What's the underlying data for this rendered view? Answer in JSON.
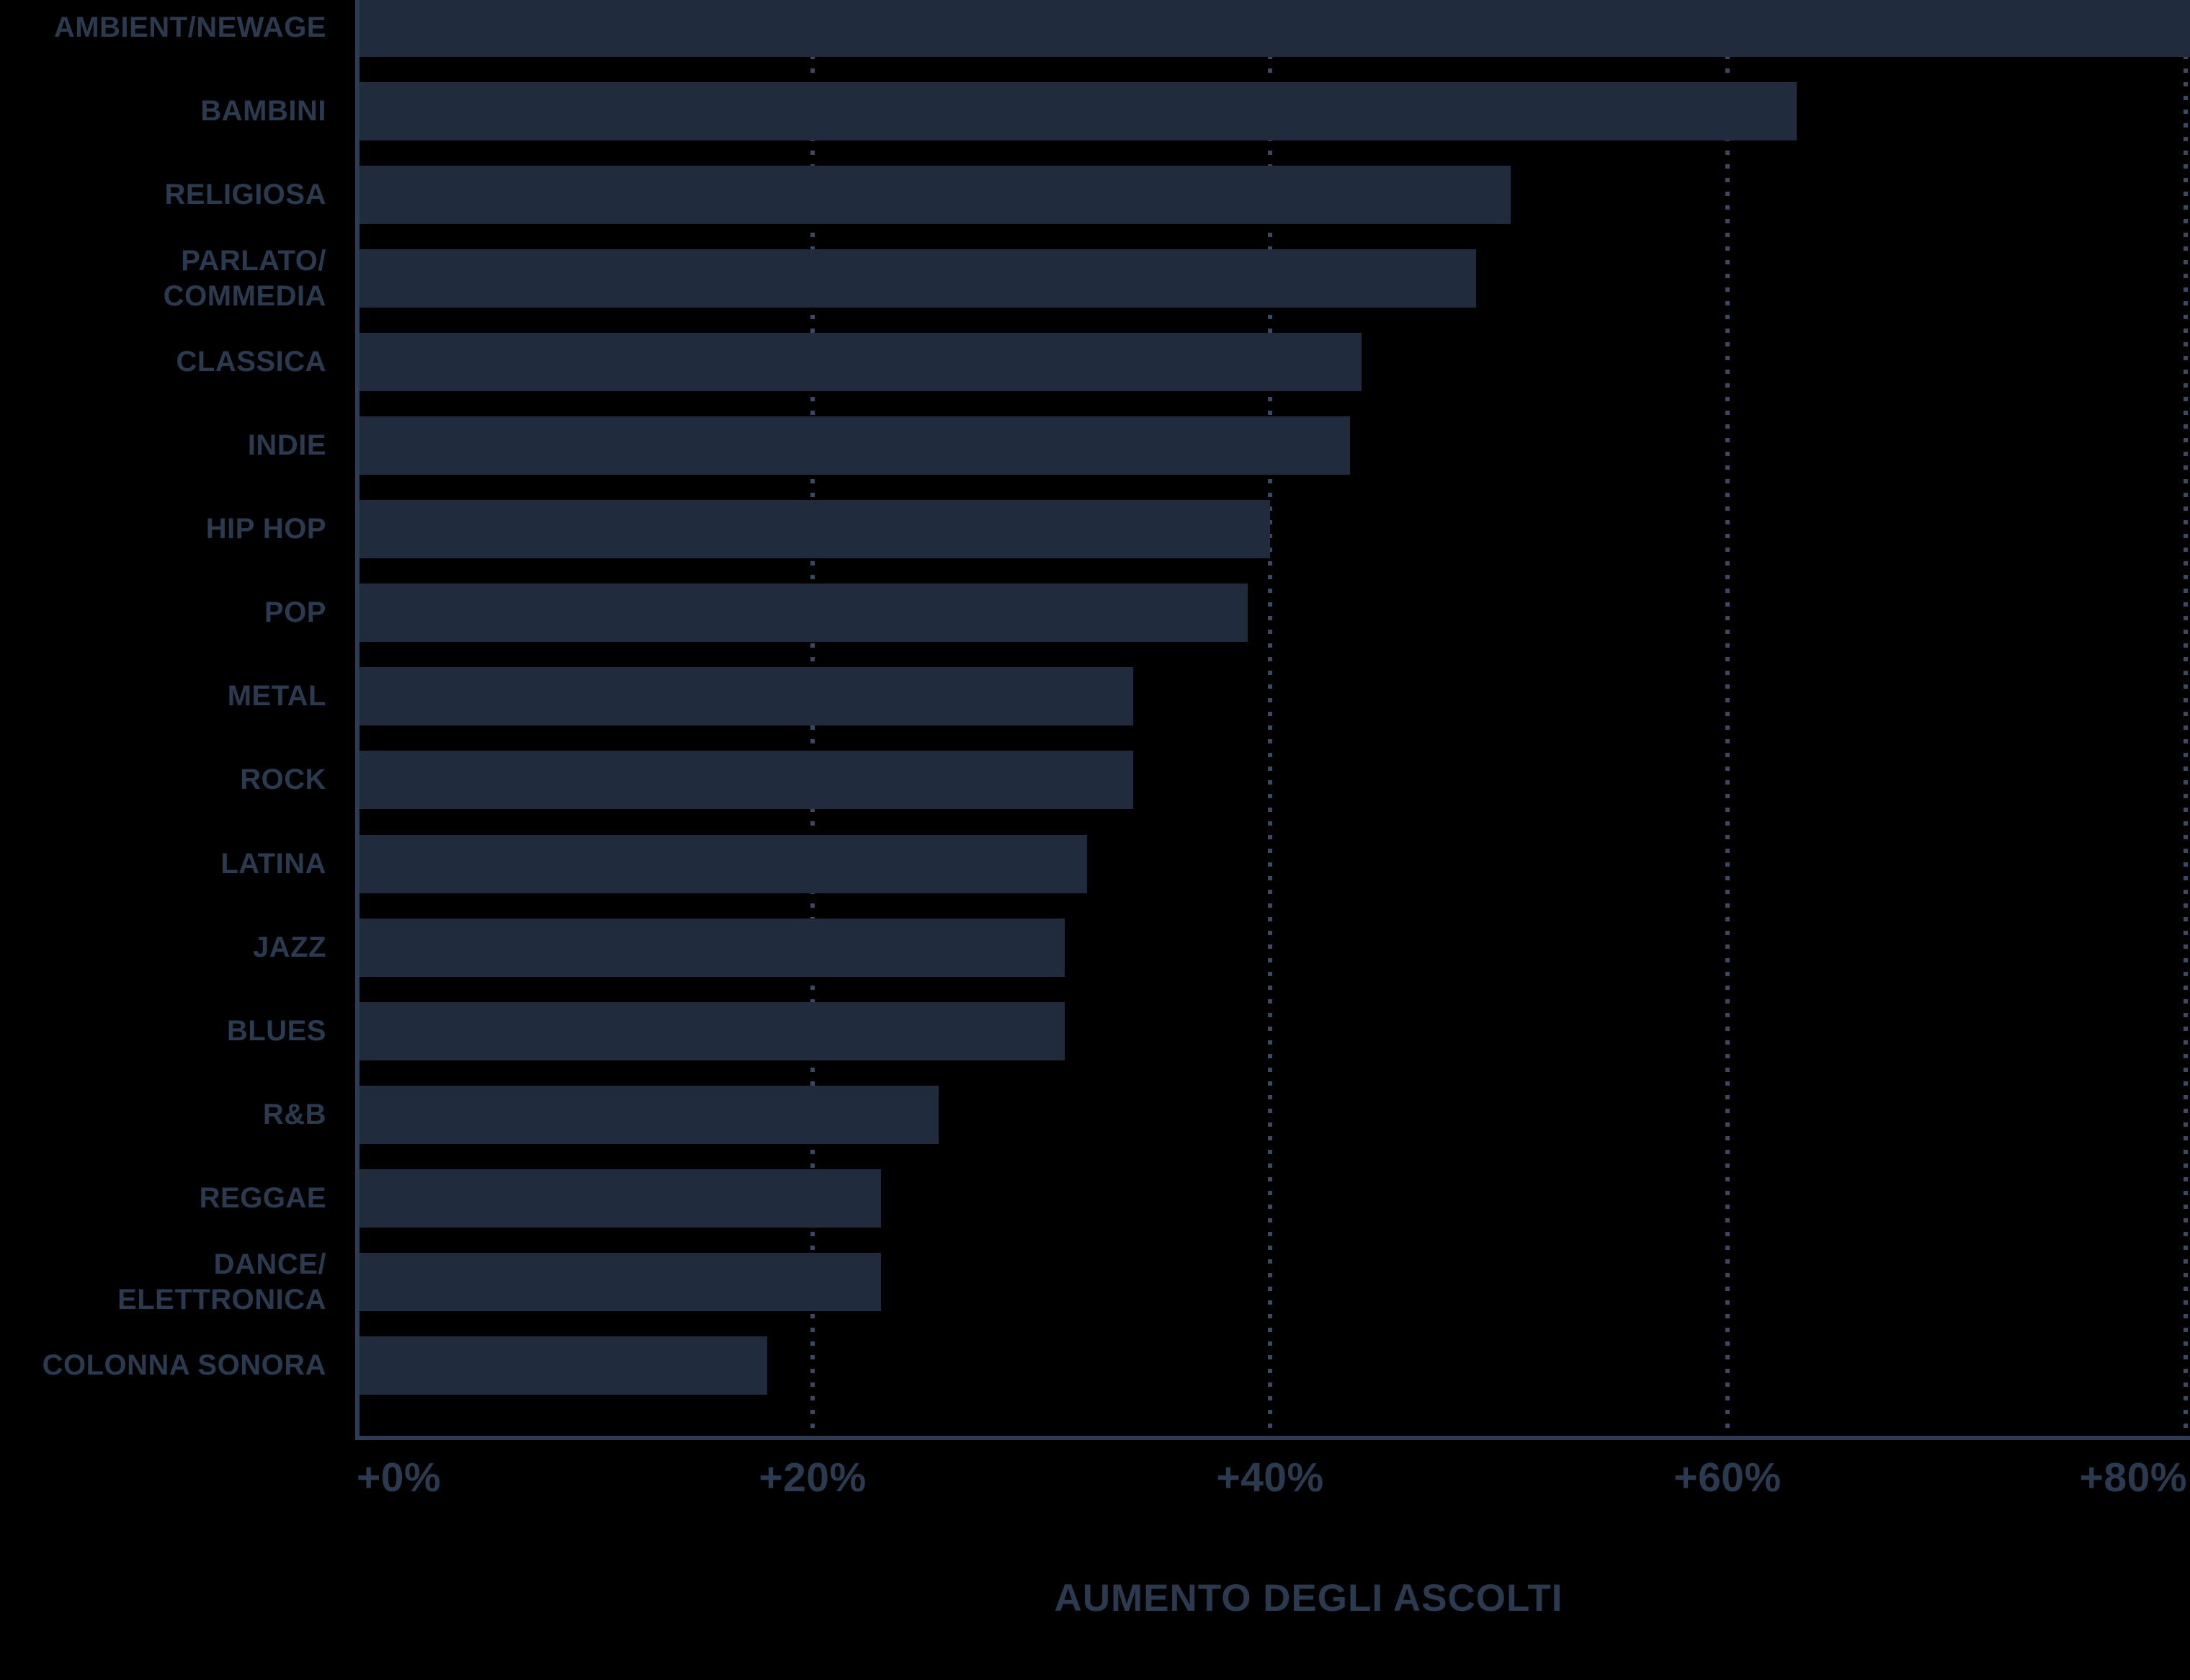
{
  "colors": {
    "background": "#000000",
    "bar": "#202c3e",
    "label_text": "#2b3a4f",
    "axis_line": "#2d3c52",
    "gridline": "#3a4961"
  },
  "chart_data": {
    "type": "bar",
    "orientation": "horizontal",
    "xlabel": "AUMENTO DEGLI ASCOLTI",
    "xlim": [
      0,
      80.2
    ],
    "grid": "dotted-vertical",
    "legend": "none",
    "x_ticks": [
      {
        "value": 0,
        "label": "+0%"
      },
      {
        "value": 20,
        "label": "+20%"
      },
      {
        "value": 40,
        "label": "+40%"
      },
      {
        "value": 60,
        "label": "+60%"
      },
      {
        "value": 80,
        "label": "+80%"
      }
    ],
    "gridline_values": [
      20,
      40,
      60,
      80
    ],
    "categories": [
      "AMBIENT/NEWAGE",
      "BAMBINI",
      "RELIGIOSA",
      "PARLATO/\nCOMMEDIA",
      "CLASSICA",
      "INDIE",
      "HIP HOP",
      "POP",
      "METAL",
      "ROCK",
      "LATINA",
      "JAZZ",
      "BLUES",
      "R&B",
      "REGGAE",
      "DANCE/\nELETTRONICA",
      "COLONNA SONORA"
    ],
    "values": [
      80.2,
      63,
      50.5,
      49,
      44,
      43.5,
      40,
      39,
      34,
      34,
      32,
      31,
      31,
      25.5,
      23,
      23,
      18
    ],
    "bars": [
      {
        "label": "AMBIENT/NEWAGE",
        "value": 80.2,
        "clipped_at_right_edge": true
      },
      {
        "label": "BAMBINI",
        "value": 63
      },
      {
        "label": "RELIGIOSA",
        "value": 50.5
      },
      {
        "label": "PARLATO/\nCOMMEDIA",
        "value": 49
      },
      {
        "label": "CLASSICA",
        "value": 44
      },
      {
        "label": "INDIE",
        "value": 43.5
      },
      {
        "label": "HIP HOP",
        "value": 40
      },
      {
        "label": "POP",
        "value": 39
      },
      {
        "label": "METAL",
        "value": 34
      },
      {
        "label": "ROCK",
        "value": 34
      },
      {
        "label": "LATINA",
        "value": 32
      },
      {
        "label": "JAZZ",
        "value": 31
      },
      {
        "label": "BLUES",
        "value": 31
      },
      {
        "label": "R&B",
        "value": 25.5
      },
      {
        "label": "REGGAE",
        "value": 23
      },
      {
        "label": "DANCE/\nELETTRONICA",
        "value": 23
      },
      {
        "label": "COLONNA SONORA",
        "value": 18
      }
    ]
  }
}
